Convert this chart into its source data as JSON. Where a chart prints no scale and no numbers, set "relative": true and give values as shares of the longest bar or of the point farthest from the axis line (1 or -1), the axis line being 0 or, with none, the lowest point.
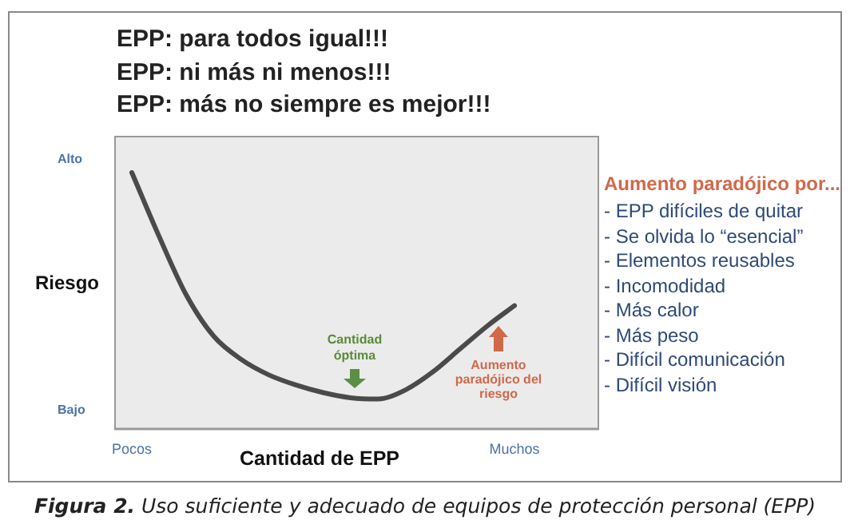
{
  "chart_data": {
    "type": "line",
    "relative": true,
    "title": "EPP: para todos igual!!!\nEPP: ni más ni menos!!!\nEPP: más no siempre es mejor!!!",
    "xlabel": "Cantidad de EPP",
    "ylabel": "Riesgo",
    "categories": [
      "Pocos",
      null,
      null,
      null,
      null,
      null,
      null,
      null,
      null,
      null,
      null,
      null,
      null,
      null,
      "Muchos"
    ],
    "series": [
      {
        "color": "#4a4a4a",
        "values": [
          1,
          0.75,
          0.52,
          0.36,
          0.27,
          0.21,
          0.17,
          0.14,
          0.12,
          0.115,
          0.15,
          0.22,
          0.31,
          0.4,
          0.48
        ]
      }
    ],
    "marker": "none",
    "grid": false,
    "legend": false,
    "annotations": [
      "Alto",
      "Bajo",
      "Cantidad óptima",
      "Aumento paradójico del riesgo",
      "Aumento paradójico por...",
      "- EPP difíciles de quitar",
      "- Se olvida lo “esencial”",
      "- Elementos reusables",
      "- Incomodidad",
      "- Más calor",
      "- Más peso",
      "- Difícil comunicación",
      "- Difícil visión",
      "Figura 2. Uso suficiente y adecuado de equipos de protección personal (EPP)"
    ]
  }
}
